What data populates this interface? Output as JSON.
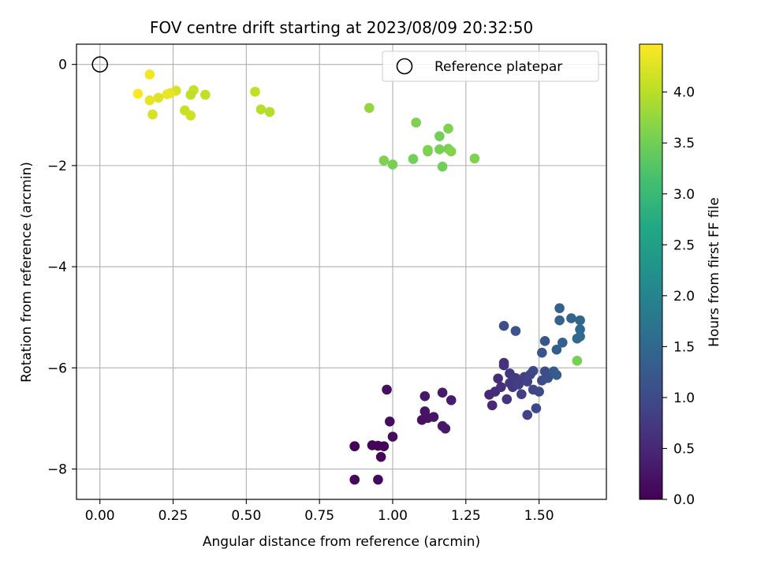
{
  "chart_data": {
    "type": "scatter",
    "title": "FOV centre drift starting at 2023/08/09 20:32:50",
    "xlabel": "Angular distance from reference (arcmin)",
    "ylabel": "Rotation from reference (arcmin)",
    "xlim": [
      -0.08,
      1.73
    ],
    "ylim": [
      -8.6,
      0.4
    ],
    "x_ticks": [
      0.0,
      0.25,
      0.5,
      0.75,
      1.0,
      1.25,
      1.5
    ],
    "x_tick_labels": [
      "0.00",
      "0.25",
      "0.50",
      "0.75",
      "1.00",
      "1.25",
      "1.50"
    ],
    "y_ticks": [
      0,
      -2,
      -4,
      -6,
      -8
    ],
    "y_tick_labels": [
      "0",
      "−2",
      "−4",
      "−6",
      "−8"
    ],
    "grid": true,
    "legend": {
      "placement": "upper-right",
      "entries": [
        "Reference platepar"
      ]
    },
    "reference_point": {
      "x": 0.0,
      "y": 0.0
    },
    "colorbar": {
      "label": "Hours from first FF file",
      "colormap": "viridis",
      "range": [
        0.0,
        4.47
      ],
      "ticks": [
        0.0,
        0.5,
        1.0,
        1.5,
        2.0,
        2.5,
        3.0,
        3.5,
        4.0
      ],
      "tick_labels": [
        "0.0",
        "0.5",
        "1.0",
        "1.5",
        "2.0",
        "2.5",
        "3.0",
        "3.5",
        "4.0"
      ]
    },
    "points": [
      {
        "x": 0.87,
        "y": -7.55,
        "c": 0.0
      },
      {
        "x": 0.87,
        "y": -7.55,
        "c": 0.02
      },
      {
        "x": 0.93,
        "y": -7.53,
        "c": 0.04
      },
      {
        "x": 0.95,
        "y": -7.54,
        "c": 0.05
      },
      {
        "x": 0.97,
        "y": -7.55,
        "c": 0.07
      },
      {
        "x": 0.96,
        "y": -7.76,
        "c": 0.08
      },
      {
        "x": 0.87,
        "y": -8.21,
        "c": 0.1
      },
      {
        "x": 0.95,
        "y": -8.21,
        "c": 0.11
      },
      {
        "x": 1.0,
        "y": -7.36,
        "c": 0.13
      },
      {
        "x": 0.99,
        "y": -7.06,
        "c": 0.15
      },
      {
        "x": 0.98,
        "y": -6.43,
        "c": 0.17
      },
      {
        "x": 1.1,
        "y": -7.03,
        "c": 0.2
      },
      {
        "x": 1.12,
        "y": -6.99,
        "c": 0.22
      },
      {
        "x": 1.11,
        "y": -6.86,
        "c": 0.24
      },
      {
        "x": 1.14,
        "y": -6.97,
        "c": 0.26
      },
      {
        "x": 1.11,
        "y": -6.56,
        "c": 0.28
      },
      {
        "x": 1.17,
        "y": -7.15,
        "c": 0.3
      },
      {
        "x": 1.18,
        "y": -7.2,
        "c": 0.31
      },
      {
        "x": 1.17,
        "y": -6.49,
        "c": 0.33
      },
      {
        "x": 1.2,
        "y": -6.64,
        "c": 0.35
      },
      {
        "x": 1.33,
        "y": -6.53,
        "c": 0.5
      },
      {
        "x": 1.34,
        "y": -6.74,
        "c": 0.52
      },
      {
        "x": 1.35,
        "y": -6.47,
        "c": 0.55
      },
      {
        "x": 1.36,
        "y": -6.21,
        "c": 0.57
      },
      {
        "x": 1.37,
        "y": -6.38,
        "c": 0.6
      },
      {
        "x": 1.38,
        "y": -5.9,
        "c": 0.62
      },
      {
        "x": 1.38,
        "y": -5.95,
        "c": 0.64
      },
      {
        "x": 1.39,
        "y": -6.62,
        "c": 0.67
      },
      {
        "x": 1.4,
        "y": -6.11,
        "c": 0.69
      },
      {
        "x": 1.4,
        "y": -6.3,
        "c": 0.72
      },
      {
        "x": 1.41,
        "y": -6.38,
        "c": 0.74
      },
      {
        "x": 1.42,
        "y": -6.2,
        "c": 0.77
      },
      {
        "x": 1.43,
        "y": -6.33,
        "c": 0.79
      },
      {
        "x": 1.44,
        "y": -6.52,
        "c": 0.82
      },
      {
        "x": 1.45,
        "y": -6.18,
        "c": 0.84
      },
      {
        "x": 1.46,
        "y": -6.93,
        "c": 0.86
      },
      {
        "x": 1.46,
        "y": -6.27,
        "c": 0.88
      },
      {
        "x": 1.47,
        "y": -6.13,
        "c": 0.9
      },
      {
        "x": 1.48,
        "y": -6.43,
        "c": 0.92
      },
      {
        "x": 1.48,
        "y": -6.06,
        "c": 0.95
      },
      {
        "x": 1.49,
        "y": -6.8,
        "c": 0.97
      },
      {
        "x": 1.5,
        "y": -6.47,
        "c": 0.99
      },
      {
        "x": 1.51,
        "y": -6.25,
        "c": 1.02
      },
      {
        "x": 1.52,
        "y": -6.07,
        "c": 1.05
      },
      {
        "x": 1.53,
        "y": -6.2,
        "c": 1.08
      },
      {
        "x": 1.38,
        "y": -5.17,
        "c": 1.1
      },
      {
        "x": 1.42,
        "y": -5.27,
        "c": 1.13
      },
      {
        "x": 1.51,
        "y": -5.7,
        "c": 1.17
      },
      {
        "x": 1.52,
        "y": -5.47,
        "c": 1.2
      },
      {
        "x": 1.55,
        "y": -6.07,
        "c": 1.25
      },
      {
        "x": 1.56,
        "y": -6.14,
        "c": 1.28
      },
      {
        "x": 1.56,
        "y": -5.64,
        "c": 1.32
      },
      {
        "x": 1.57,
        "y": -4.82,
        "c": 1.36
      },
      {
        "x": 1.57,
        "y": -5.06,
        "c": 1.39
      },
      {
        "x": 1.58,
        "y": -5.5,
        "c": 1.42
      },
      {
        "x": 1.61,
        "y": -5.02,
        "c": 1.45
      },
      {
        "x": 1.64,
        "y": -5.06,
        "c": 1.48
      },
      {
        "x": 1.64,
        "y": -5.24,
        "c": 1.5
      },
      {
        "x": 1.64,
        "y": -5.38,
        "c": 1.53
      },
      {
        "x": 1.63,
        "y": -5.42,
        "c": 1.55
      },
      {
        "x": 1.63,
        "y": -5.86,
        "c": 3.55
      },
      {
        "x": 0.92,
        "y": -0.86,
        "c": 3.75
      },
      {
        "x": 0.97,
        "y": -1.9,
        "c": 3.6
      },
      {
        "x": 1.0,
        "y": -1.98,
        "c": 3.55
      },
      {
        "x": 1.07,
        "y": -1.87,
        "c": 3.5
      },
      {
        "x": 1.08,
        "y": -1.15,
        "c": 3.6
      },
      {
        "x": 1.12,
        "y": -1.72,
        "c": 3.55
      },
      {
        "x": 1.12,
        "y": -1.69,
        "c": 3.6
      },
      {
        "x": 1.16,
        "y": -1.68,
        "c": 3.55
      },
      {
        "x": 1.16,
        "y": -1.42,
        "c": 3.5
      },
      {
        "x": 1.17,
        "y": -2.02,
        "c": 3.5
      },
      {
        "x": 1.19,
        "y": -1.27,
        "c": 3.6
      },
      {
        "x": 1.19,
        "y": -1.67,
        "c": 3.55
      },
      {
        "x": 1.2,
        "y": -1.72,
        "c": 3.65
      },
      {
        "x": 1.28,
        "y": -1.86,
        "c": 3.6
      },
      {
        "x": 0.53,
        "y": -0.54,
        "c": 4.05
      },
      {
        "x": 0.55,
        "y": -0.89,
        "c": 4.0
      },
      {
        "x": 0.58,
        "y": -0.94,
        "c": 3.95
      },
      {
        "x": 0.36,
        "y": -0.6,
        "c": 4.05
      },
      {
        "x": 0.32,
        "y": -0.51,
        "c": 4.1
      },
      {
        "x": 0.31,
        "y": -0.6,
        "c": 4.05
      },
      {
        "x": 0.31,
        "y": -1.01,
        "c": 4.15
      },
      {
        "x": 0.29,
        "y": -0.91,
        "c": 4.1
      },
      {
        "x": 0.26,
        "y": -0.52,
        "c": 4.2
      },
      {
        "x": 0.24,
        "y": -0.57,
        "c": 4.3
      },
      {
        "x": 0.23,
        "y": -0.59,
        "c": 4.35
      },
      {
        "x": 0.2,
        "y": -0.66,
        "c": 4.25
      },
      {
        "x": 0.18,
        "y": -0.99,
        "c": 4.2
      },
      {
        "x": 0.17,
        "y": -0.71,
        "c": 4.3
      },
      {
        "x": 0.17,
        "y": -0.2,
        "c": 4.4
      },
      {
        "x": 0.13,
        "y": -0.58,
        "c": 4.45
      }
    ]
  }
}
